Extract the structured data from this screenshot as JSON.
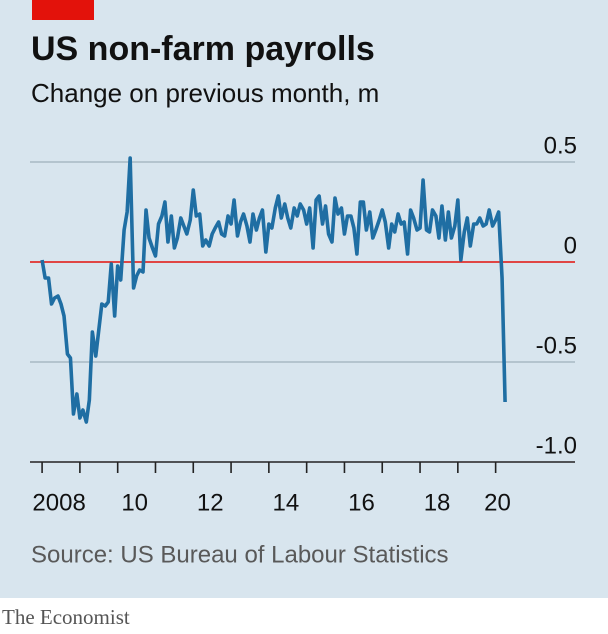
{
  "chart_data": {
    "type": "line",
    "title": "US non-farm payrolls",
    "subtitle": "Change on previous month, m",
    "source": "Source: US Bureau of Labour Statistics",
    "color": "#1f6ea3",
    "zero_line_color": "#e3120b",
    "grid": true,
    "ylim": [
      -1.0,
      0.5
    ],
    "yticks": [
      0.5,
      0,
      -0.5,
      {
        "value": -1.0,
        "label": "-1.0"
      }
    ],
    "xlim": [
      2007.68,
      2022.1
    ],
    "xminor": [
      2008,
      2009,
      2010,
      2011,
      2012,
      2013,
      2014,
      2015,
      2016,
      2017,
      2018,
      2019,
      2020
    ],
    "xticks": [
      {
        "value": 2008.45,
        "label": "2008"
      },
      {
        "value": 2010.45,
        "label": "10"
      },
      {
        "value": 2012.45,
        "label": "12"
      },
      {
        "value": 2014.45,
        "label": "14"
      },
      {
        "value": 2016.45,
        "label": "16"
      },
      {
        "value": 2018.45,
        "label": "18"
      },
      {
        "value": 2020.05,
        "label": "20"
      }
    ],
    "x": [
      2008,
      2008.08,
      2008.17,
      2008.25,
      2008.33,
      2008.42,
      2008.5,
      2008.58,
      2008.67,
      2008.75,
      2008.83,
      2008.92,
      2009,
      2009.08,
      2009.17,
      2009.25,
      2009.33,
      2009.42,
      2009.5,
      2009.58,
      2009.67,
      2009.75,
      2009.83,
      2009.92,
      2010,
      2010.08,
      2010.17,
      2010.25,
      2010.33,
      2010.42,
      2010.5,
      2010.58,
      2010.67,
      2010.75,
      2010.83,
      2010.92,
      2011,
      2011.08,
      2011.17,
      2011.25,
      2011.33,
      2011.42,
      2011.5,
      2011.58,
      2011.67,
      2011.75,
      2011.83,
      2011.92,
      2012,
      2012.08,
      2012.17,
      2012.25,
      2012.33,
      2012.42,
      2012.5,
      2012.58,
      2012.67,
      2012.75,
      2012.83,
      2012.92,
      2013,
      2013.08,
      2013.17,
      2013.25,
      2013.33,
      2013.42,
      2013.5,
      2013.58,
      2013.67,
      2013.75,
      2013.83,
      2013.92,
      2014,
      2014.08,
      2014.17,
      2014.25,
      2014.33,
      2014.42,
      2014.5,
      2014.58,
      2014.67,
      2014.75,
      2014.83,
      2014.92,
      2015,
      2015.08,
      2015.17,
      2015.25,
      2015.33,
      2015.42,
      2015.5,
      2015.58,
      2015.67,
      2015.75,
      2015.83,
      2015.92,
      2016,
      2016.08,
      2016.17,
      2016.25,
      2016.33,
      2016.42,
      2016.5,
      2016.58,
      2016.67,
      2016.75,
      2016.83,
      2016.92,
      2017,
      2017.08,
      2017.17,
      2017.25,
      2017.33,
      2017.42,
      2017.5,
      2017.58,
      2017.67,
      2017.75,
      2017.83,
      2017.92,
      2018,
      2018.08,
      2018.17,
      2018.25,
      2018.33,
      2018.42,
      2018.5,
      2018.58,
      2018.67,
      2018.75,
      2018.83,
      2018.92,
      2019,
      2019.08,
      2019.17,
      2019.25,
      2019.33,
      2019.42,
      2019.5,
      2019.58,
      2019.67,
      2019.75,
      2019.83,
      2019.92,
      2020,
      2020.08,
      2020.17,
      2020.25
    ],
    "values": [
      0.01,
      -0.08,
      -0.08,
      -0.21,
      -0.18,
      -0.17,
      -0.21,
      -0.27,
      -0.46,
      -0.48,
      -0.76,
      -0.66,
      -0.78,
      -0.74,
      -0.8,
      -0.69,
      -0.35,
      -0.47,
      -0.34,
      -0.21,
      -0.22,
      -0.2,
      -0.01,
      -0.27,
      -0.02,
      -0.09,
      0.16,
      0.25,
      0.52,
      -0.13,
      -0.07,
      -0.04,
      -0.05,
      0.26,
      0.12,
      0.07,
      0.03,
      0.19,
      0.23,
      0.3,
      0.1,
      0.23,
      0.07,
      0.12,
      0.22,
      0.18,
      0.14,
      0.21,
      0.36,
      0.23,
      0.24,
      0.08,
      0.11,
      0.08,
      0.14,
      0.17,
      0.2,
      0.14,
      0.13,
      0.23,
      0.19,
      0.31,
      0.13,
      0.2,
      0.24,
      0.18,
      0.1,
      0.24,
      0.16,
      0.22,
      0.26,
      0.05,
      0.19,
      0.17,
      0.27,
      0.33,
      0.22,
      0.29,
      0.22,
      0.17,
      0.27,
      0.23,
      0.29,
      0.26,
      0.19,
      0.27,
      0.07,
      0.31,
      0.33,
      0.19,
      0.28,
      0.14,
      0.1,
      0.32,
      0.24,
      0.27,
      0.14,
      0.23,
      0.23,
      0.17,
      0.04,
      0.3,
      0.3,
      0.16,
      0.25,
      0.12,
      0.16,
      0.21,
      0.26,
      0.2,
      0.07,
      0.19,
      0.15,
      0.24,
      0.19,
      0.2,
      0.04,
      0.26,
      0.22,
      0.16,
      0.17,
      0.41,
      0.16,
      0.15,
      0.26,
      0.23,
      0.12,
      0.28,
      0.11,
      0.25,
      0.12,
      0.18,
      0.31,
      0.01,
      0.15,
      0.22,
      0.08,
      0.19,
      0.19,
      0.22,
      0.18,
      0.19,
      0.26,
      0.18,
      0.21,
      0.25,
      -0.08,
      -0.7
    ]
  },
  "footer": {
    "brand": "The Economist"
  }
}
